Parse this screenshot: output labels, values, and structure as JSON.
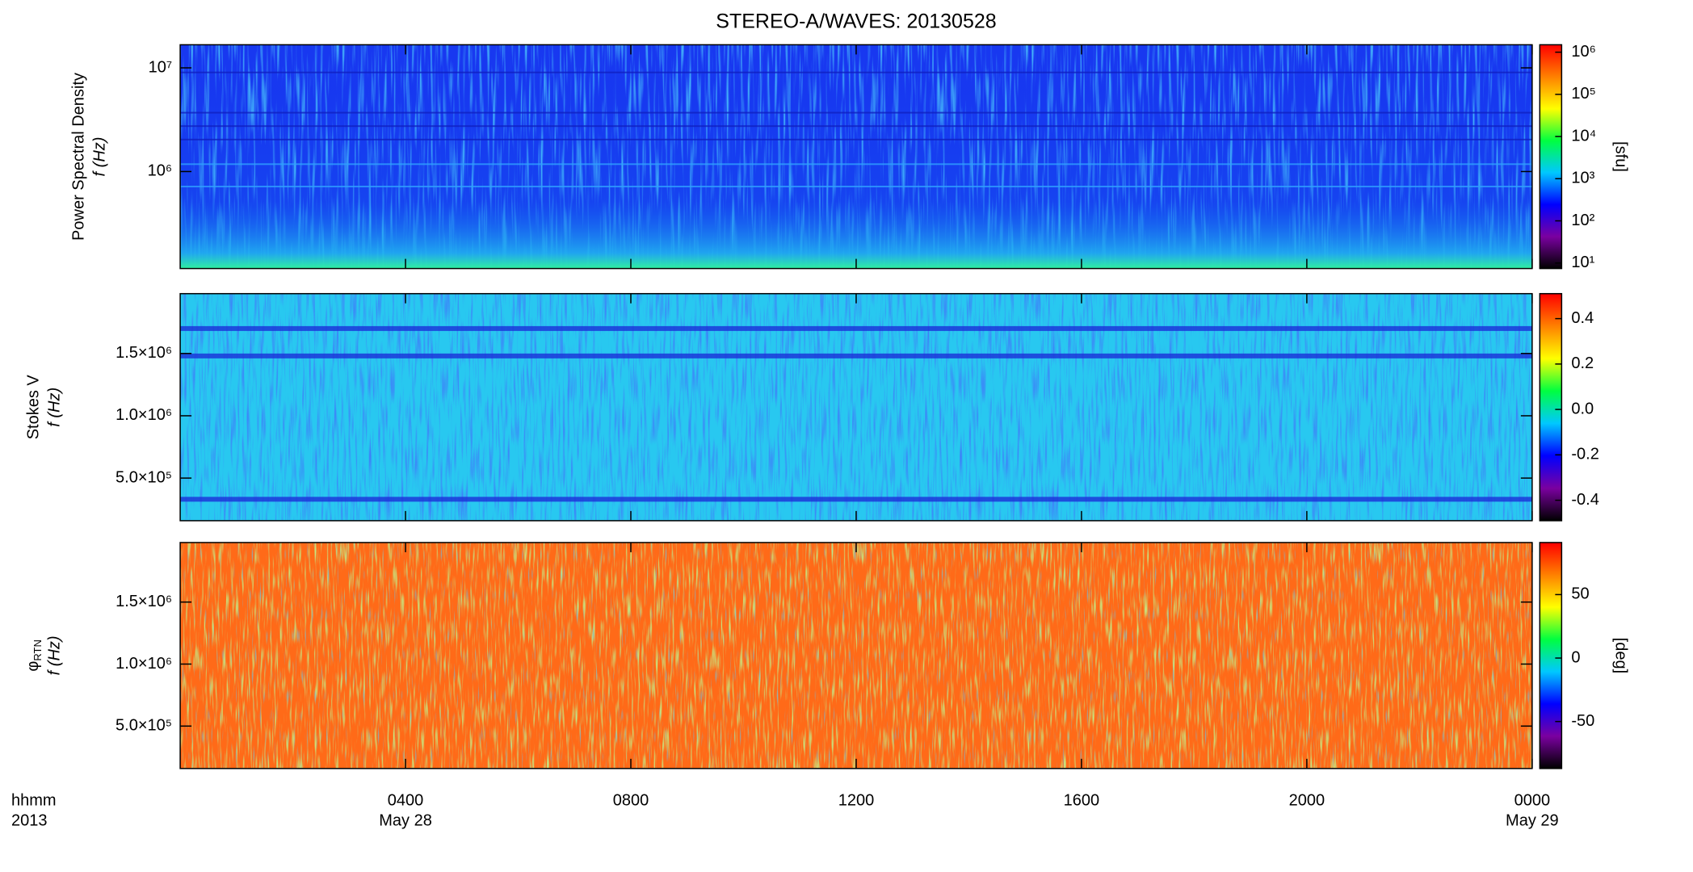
{
  "chart_data": [
    {
      "type": "spectrogram",
      "title": "STEREO-A/WAVES: 20130528",
      "ylabel": "Power Spectral Density",
      "ylabel2": "f (Hz)",
      "yscale": "log",
      "ylim": [
        116000,
        16700000
      ],
      "yticks": [
        {
          "value": 1000000,
          "label": "10⁶"
        },
        {
          "value": 10000000,
          "label": "10⁷"
        }
      ],
      "colormap": [
        "#000000",
        "#7a00a0",
        "#0000ff",
        "#00c8ff",
        "#00ff40",
        "#ffff00",
        "#ff8000",
        "#ff0000"
      ],
      "cscale": "log",
      "clim": [
        7.4,
        1500000
      ],
      "clabel": "[sfu]",
      "cticks": [
        {
          "value": 10,
          "label": "10¹"
        },
        {
          "value": 100,
          "label": "10²"
        },
        {
          "value": 1000,
          "label": "10³"
        },
        {
          "value": 10000,
          "label": "10⁴"
        },
        {
          "value": 100000,
          "label": "10⁵"
        },
        {
          "value": 1000000,
          "label": "10⁶"
        }
      ]
    },
    {
      "type": "spectrogram",
      "ylabel": "Stokes V",
      "ylabel2": "f (Hz)",
      "yscale": "linear",
      "ylim": [
        158000,
        1980000
      ],
      "yticks": [
        {
          "value": 500000,
          "label": "5.0×10⁵"
        },
        {
          "value": 1000000,
          "label": "1.0×10⁶"
        },
        {
          "value": 1500000,
          "label": "1.5×10⁶"
        }
      ],
      "colormap": [
        "#000000",
        "#7a00a0",
        "#0000ff",
        "#00c8ff",
        "#00ff40",
        "#ffff00",
        "#ff8000",
        "#ff0000"
      ],
      "cscale": "linear",
      "clim": [
        -0.49,
        0.51
      ],
      "cticks": [
        -0.4,
        -0.2,
        {
          "value": 0,
          "label": "0.0"
        },
        0.2,
        0.4
      ]
    },
    {
      "type": "spectrogram",
      "ylabel": "φ",
      "ylabel_sub": "RTN",
      "ylabel2": "f (Hz)",
      "yscale": "linear",
      "ylim": [
        158000,
        1980000
      ],
      "yticks": [
        {
          "value": 500000,
          "label": "5.0×10⁵"
        },
        {
          "value": 1000000,
          "label": "1.0×10⁶"
        },
        {
          "value": 1500000,
          "label": "1.5×10⁶"
        }
      ],
      "colormap": [
        "#000000",
        "#7a00a0",
        "#0000ff",
        "#00c8ff",
        "#00ff40",
        "#ffff00",
        "#ff8000",
        "#ff0000"
      ],
      "cscale": "linear",
      "clim": [
        -87,
        91
      ],
      "clabel": "[deg]",
      "cticks": [
        -50,
        0,
        50
      ],
      "xlim": [
        0,
        24
      ],
      "xticks": [
        {
          "value": 4,
          "label": "0400"
        },
        {
          "value": 8,
          "label": "0800"
        },
        {
          "value": 12,
          "label": "1200"
        },
        {
          "value": 16,
          "label": "1600"
        },
        {
          "value": 20,
          "label": "2000"
        },
        {
          "value": 24,
          "label": "0000"
        }
      ],
      "xdates": [
        {
          "value": 4,
          "label": "May 28"
        },
        {
          "value": 24,
          "label": "May 29"
        }
      ],
      "xaxis_labels": [
        "hhmm",
        "2013"
      ]
    }
  ]
}
